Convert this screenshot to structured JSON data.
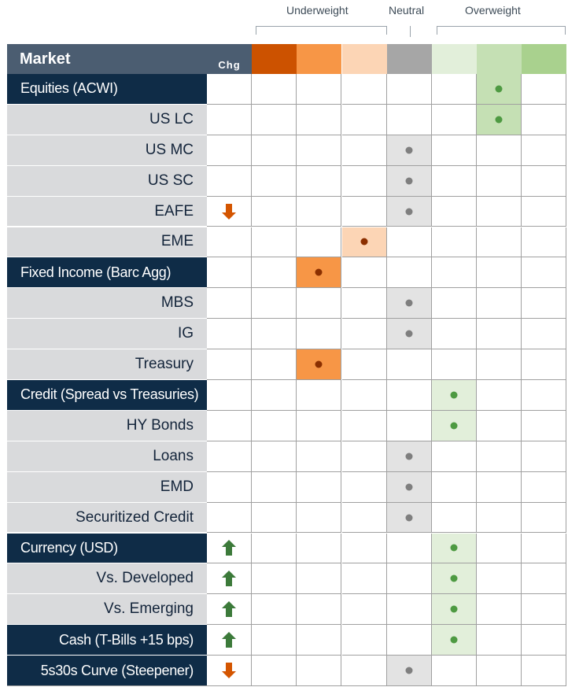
{
  "headers": {
    "market": "Market",
    "chg": "Chg",
    "underweight": "Underweight",
    "neutral": "Neutral",
    "overweight": "Overweight"
  },
  "scale_colors": [
    "#cc5200",
    "#f79646",
    "#fcd5b5",
    "#a6a6a6",
    "#e2efda",
    "#c5e0b4",
    "#a9d18e"
  ],
  "row_highlight_colors": {
    "0": "#cc5200",
    "1": "#f79646",
    "2": "#fcd5b5",
    "3": "#e3e3e3",
    "4": "#e2efda",
    "5": "#c5e0b4",
    "6": "#a9d18e"
  },
  "dot_colors": {
    "0": "#7f2700",
    "1": "#8b2f00",
    "2": "#8b2f00",
    "3": "#7f7f7f",
    "4": "#4e9a42",
    "5": "#4e9a42",
    "6": "#4e9a42"
  },
  "arrow_colors": {
    "up": "#3c7a3a",
    "down": "#d45500"
  },
  "rows": [
    {
      "label": "Equities  (ACWI)",
      "type": "cat",
      "position": 5,
      "chg": ""
    },
    {
      "label": "US LC",
      "type": "sub",
      "position": 5,
      "chg": ""
    },
    {
      "label": "US MC",
      "type": "sub",
      "position": 3,
      "chg": ""
    },
    {
      "label": "US SC",
      "type": "sub",
      "position": 3,
      "chg": ""
    },
    {
      "label": "EAFE",
      "type": "sub",
      "position": 3,
      "chg": "down"
    },
    {
      "label": "EME",
      "type": "sub",
      "position": 2,
      "chg": ""
    },
    {
      "label": "Fixed Income (Barc Agg)",
      "type": "cat",
      "position": 1,
      "chg": ""
    },
    {
      "label": "MBS",
      "type": "sub",
      "position": 3,
      "chg": ""
    },
    {
      "label": "IG",
      "type": "sub",
      "position": 3,
      "chg": ""
    },
    {
      "label": "Treasury",
      "type": "sub",
      "position": 1,
      "chg": ""
    },
    {
      "label": "Credit (Spread vs Treasuries)",
      "type": "cat",
      "position": 4,
      "chg": ""
    },
    {
      "label": "HY Bonds",
      "type": "sub",
      "position": 4,
      "chg": ""
    },
    {
      "label": "Loans",
      "type": "sub",
      "position": 3,
      "chg": ""
    },
    {
      "label": "EMD",
      "type": "sub",
      "position": 3,
      "chg": ""
    },
    {
      "label": "Securitized Credit",
      "type": "sub",
      "position": 3,
      "chg": ""
    },
    {
      "label": "Currency (USD)",
      "type": "cat",
      "position": 4,
      "chg": "up"
    },
    {
      "label": "Vs. Developed",
      "type": "sub",
      "position": 4,
      "chg": "up"
    },
    {
      "label": "Vs. Emerging",
      "type": "sub",
      "position": 4,
      "chg": "up"
    },
    {
      "label": "Cash (T-Bills +15 bps)",
      "type": "catright",
      "position": 4,
      "chg": "up"
    },
    {
      "label": "5s30s Curve (Steepener)",
      "type": "catright",
      "position": 3,
      "chg": "down"
    }
  ]
}
